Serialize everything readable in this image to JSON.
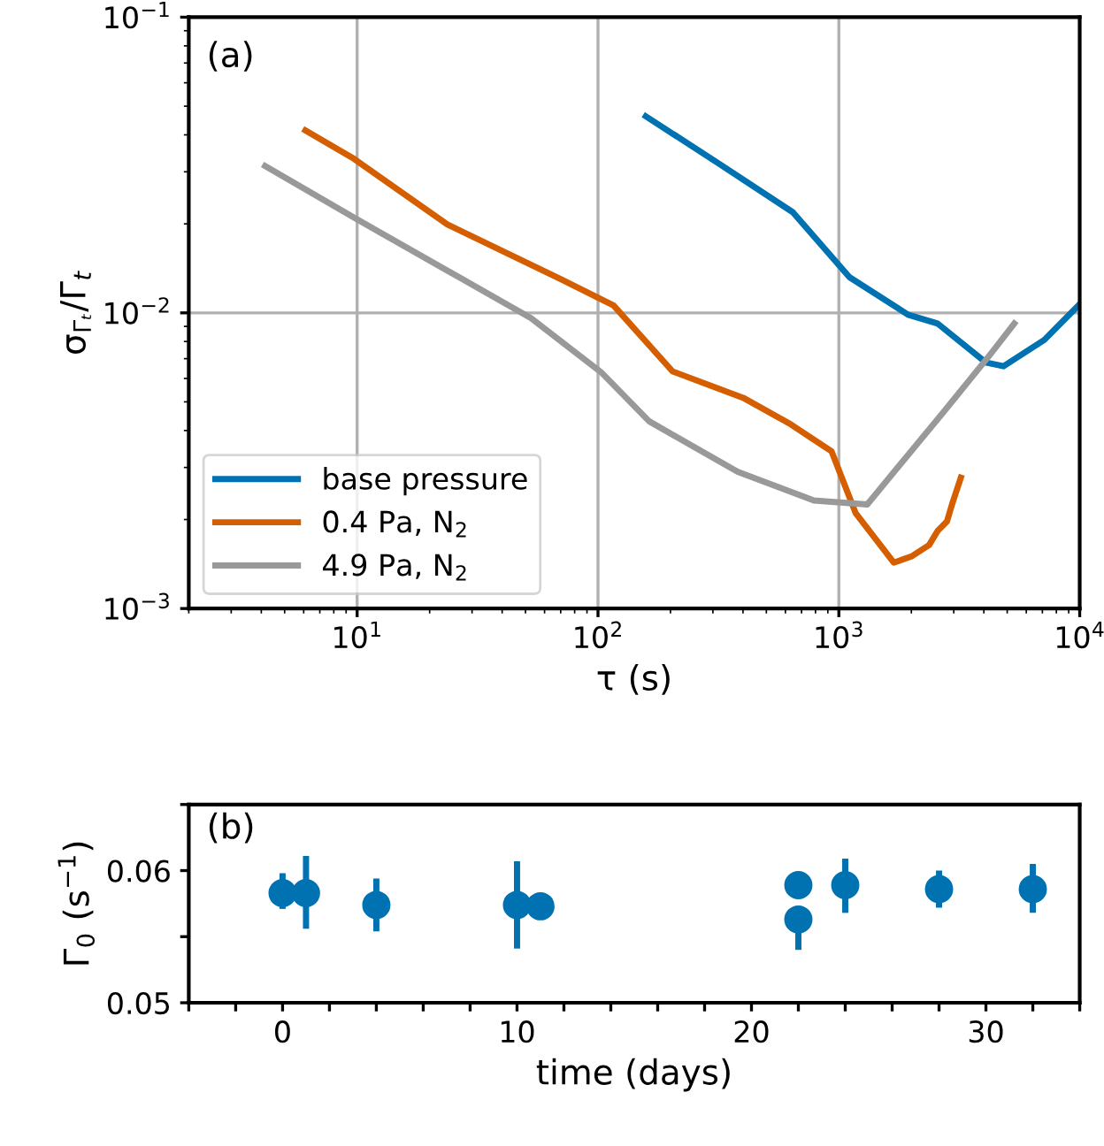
{
  "chart_data": [
    {
      "type": "line",
      "xlabel": "τ (s)",
      "ylabel": "σ$_{Γₜ}$/Γ$_{t}$",
      "log": "xy",
      "grid": true,
      "legend": "bottom left",
      "annotations": [
        "(a)"
      ],
      "xlim": [
        2,
        10000
      ],
      "xticks": [
        {
          "value": 10,
          "label": "10$^{1}$"
        },
        {
          "value": 100,
          "label": "10$^{2}$"
        },
        {
          "value": 1000,
          "label": "10$^{3}$"
        },
        {
          "value": 10000,
          "label": "10$^{4}$"
        }
      ],
      "ylim": [
        0.001,
        0.1
      ],
      "yticks": [
        {
          "value": 0.001,
          "label": "10$^{−3}$"
        },
        {
          "value": 0.01,
          "label": "10$^{−2}$"
        },
        {
          "value": 0.1,
          "label": "10$^{−1}$"
        }
      ],
      "series": [
        {
          "name": "base pressure",
          "color": "#0072b2",
          "x": [
            158,
            321,
            644,
            1107,
            1937,
            2570,
            4070,
            4830,
            7130,
            10000
          ],
          "values": [
            0.0462,
            0.0318,
            0.0219,
            0.0132,
            0.00986,
            0.0092,
            0.0068,
            0.0066,
            0.0081,
            0.0107
          ]
        },
        {
          "name": "0.4 Pa, N$_{2}$",
          "color": "#d55e00",
          "x": [
            6.1,
            9.7,
            23.7,
            70,
            116,
            204,
            401,
            631,
            933,
            1175,
            1690,
            2000,
            2370,
            2570,
            2810,
            2950,
            3210
          ],
          "values": [
            0.0414,
            0.0332,
            0.0199,
            0.013,
            0.0106,
            0.00634,
            0.00516,
            0.0042,
            0.0034,
            0.0021,
            0.00143,
            0.0015,
            0.00164,
            0.00183,
            0.00197,
            0.00225,
            0.00277
          ]
        },
        {
          "name": "4.9 Pa, N$_{2}$",
          "color": "#999999",
          "x": [
            4.15,
            9.7,
            52.7,
            103,
            163,
            380,
            788,
            1312,
            2720,
            4280,
            5350
          ],
          "values": [
            0.0314,
            0.021,
            0.0096,
            0.0063,
            0.0043,
            0.0029,
            0.00232,
            0.00225,
            0.00462,
            0.00728,
            0.0092
          ]
        }
      ]
    },
    {
      "type": "scatter",
      "xlabel": "time (days)",
      "ylabel": "Γ$_{0}$ (s$^{−1}$)",
      "marker": "circle",
      "annotations": [
        "(b)"
      ],
      "xlim": [
        -4,
        34
      ],
      "xticks": [
        {
          "value": -4,
          "label": null
        },
        {
          "value": -2,
          "label": null
        },
        0,
        {
          "value": 2,
          "label": null
        },
        {
          "value": 4,
          "label": null
        },
        {
          "value": 6,
          "label": null
        },
        {
          "value": 8,
          "label": null
        },
        10,
        {
          "value": 12,
          "label": null
        },
        {
          "value": 14,
          "label": null
        },
        {
          "value": 16,
          "label": null
        },
        {
          "value": 18,
          "label": null
        },
        20,
        {
          "value": 22,
          "label": null
        },
        {
          "value": 24,
          "label": null
        },
        {
          "value": 26,
          "label": null
        },
        {
          "value": 28,
          "label": null
        },
        30,
        {
          "value": 32,
          "label": null
        },
        {
          "value": 34,
          "label": null
        }
      ],
      "ylim": [
        0.05,
        0.065
      ],
      "yticks": [
        0.05,
        {
          "value": 0.055,
          "label": null
        },
        0.06,
        {
          "value": 0.065,
          "label": null
        }
      ],
      "series": [
        {
          "color": "#0072b2",
          "x": [
            0,
            1,
            4,
            10,
            11,
            22,
            22,
            24,
            28,
            32
          ],
          "values": [
            0.0583,
            0.0583,
            0.0574,
            0.0574,
            0.0573,
            0.0589,
            0.0563,
            0.0589,
            0.0586,
            0.0586
          ],
          "errors": [
            [
              0.0571,
              0.0598
            ],
            [
              0.0556,
              0.0611
            ],
            [
              0.0554,
              0.0594
            ],
            [
              0.0541,
              0.0607
            ],
            [
              0.0564,
              0.0582
            ],
            [
              0.0581,
              0.0597
            ],
            [
              0.054,
              0.0573
            ],
            [
              0.0568,
              0.0609
            ],
            [
              0.0572,
              0.06
            ],
            [
              0.0568,
              0.0605
            ]
          ]
        }
      ]
    }
  ]
}
